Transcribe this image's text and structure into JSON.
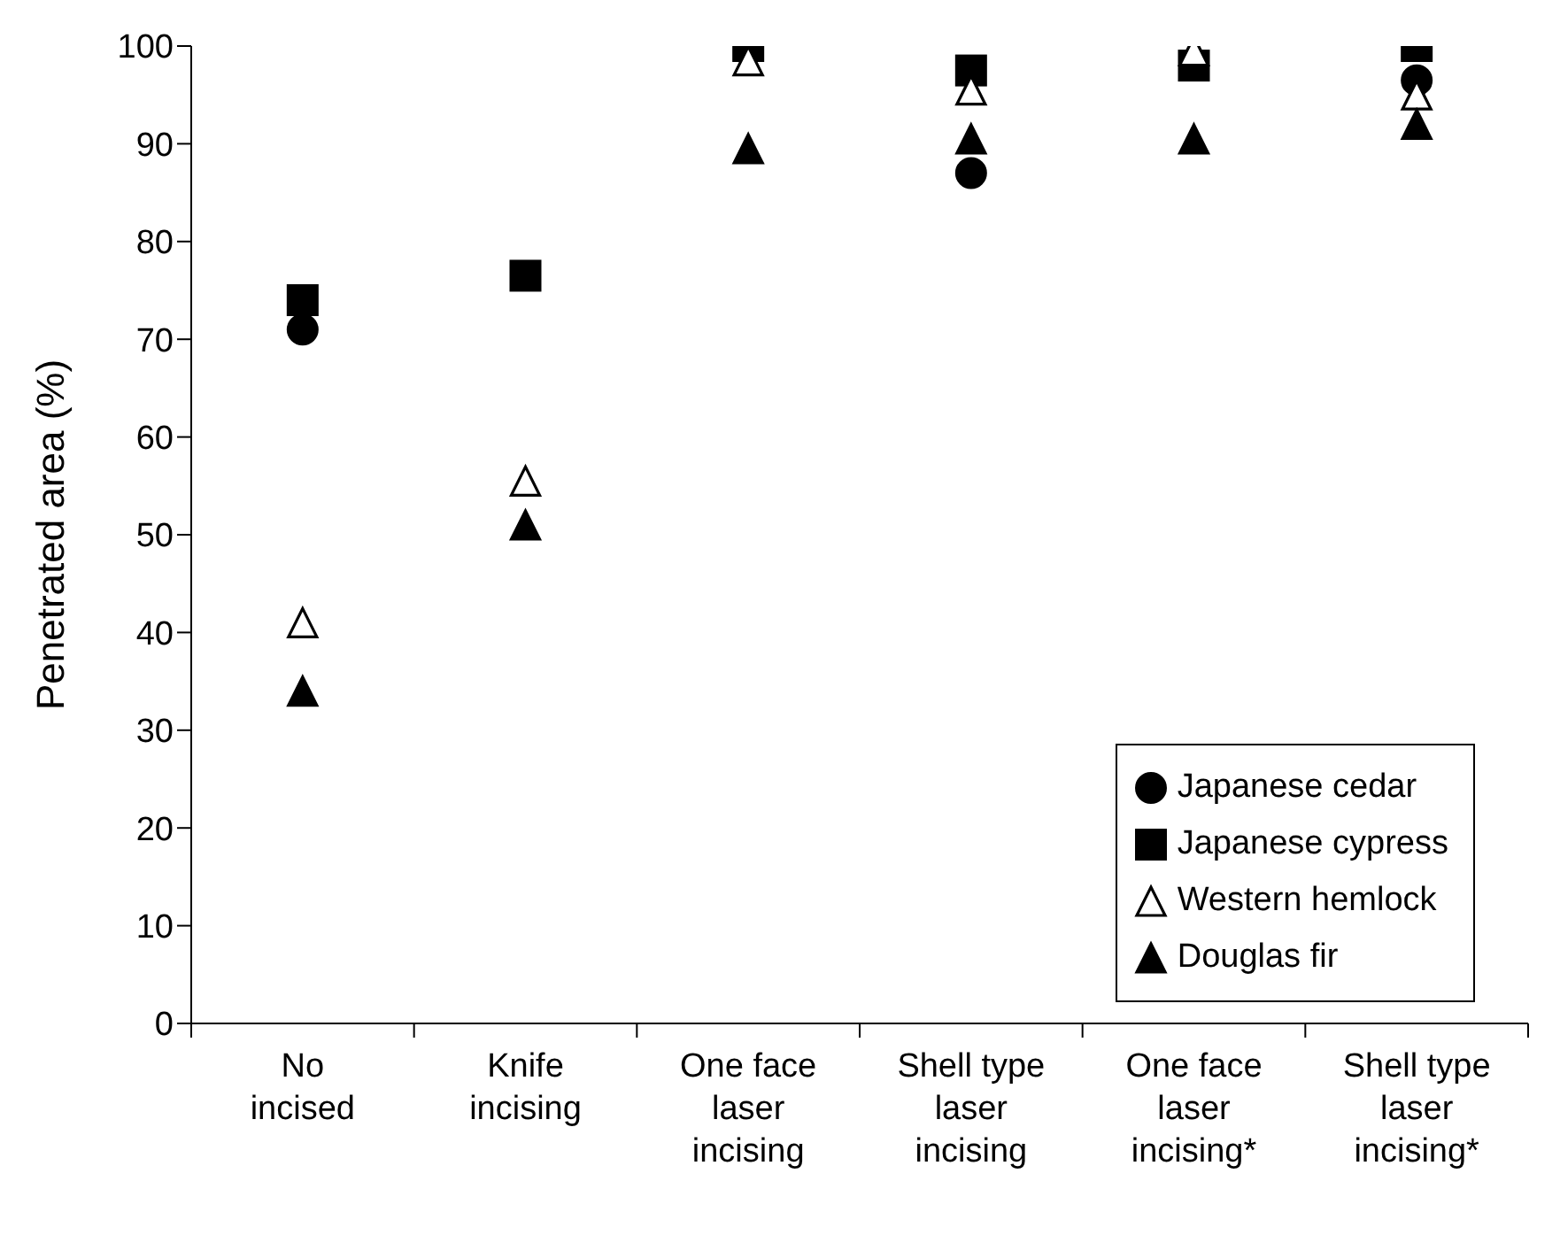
{
  "chart_data": {
    "type": "scatter",
    "ylabel": "Penetrated area (%)",
    "categories": [
      "No\nincised",
      "Knife\nincising",
      "One face\nlaser\nincising",
      "Shell type\nlaser\nincising",
      "One face\nlaser\nincising*",
      "Shell type\nlaser\nincising*"
    ],
    "ylim": [
      0,
      100
    ],
    "yticks": [
      0,
      10,
      20,
      30,
      40,
      50,
      60,
      70,
      80,
      90,
      100
    ],
    "grid": false,
    "legend": "bottom right",
    "series": [
      {
        "name": "Japanese cedar",
        "color": "#000000",
        "marker": "circle",
        "values": [
          71,
          null,
          null,
          87,
          null,
          96.5
        ]
      },
      {
        "name": "Japanese cypress",
        "color": "#000000",
        "marker": "square",
        "values": [
          74,
          76.5,
          100,
          97.5,
          98,
          100
        ]
      },
      {
        "name": "Western hemlock",
        "color": "#ffffff",
        "marker": "triangle",
        "values": [
          41,
          55.5,
          98.5,
          95.5,
          99.5,
          95
        ]
      },
      {
        "name": "Douglas fir",
        "color": "#000000",
        "marker": "triangle",
        "values": [
          34,
          51,
          89.5,
          90.5,
          90.5,
          92
        ]
      }
    ]
  }
}
